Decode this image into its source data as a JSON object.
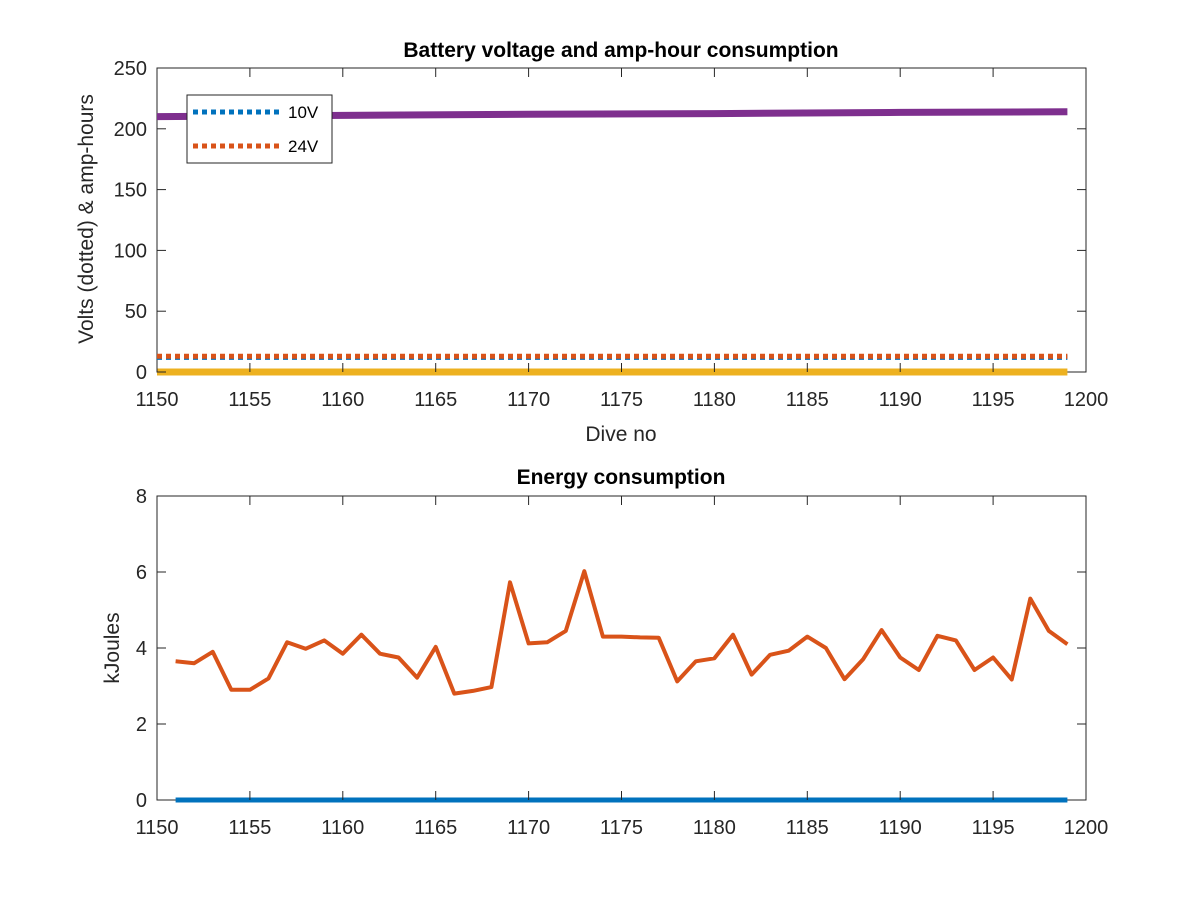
{
  "chart_data": [
    {
      "type": "line",
      "title": "Battery voltage and amp-hour consumption",
      "xlabel": "Dive no",
      "ylabel": "Volts (dotted) & amp-hours",
      "xlim": [
        1150,
        1200
      ],
      "ylim": [
        0,
        250
      ],
      "xticks": [
        1150,
        1155,
        1160,
        1165,
        1170,
        1175,
        1180,
        1185,
        1190,
        1195,
        1200
      ],
      "yticks": [
        0,
        50,
        100,
        150,
        200,
        250
      ],
      "legend": {
        "placement": "top-left",
        "entries": [
          "10V",
          "24V"
        ]
      },
      "series": [
        {
          "name": "10V",
          "style": "dotted",
          "color": "#0072BD",
          "x": [
            1150,
            1199
          ],
          "y": [
            12,
            12
          ]
        },
        {
          "name": "24V",
          "style": "dotted",
          "color": "#D95319",
          "x": [
            1150,
            1199
          ],
          "y": [
            13,
            13
          ]
        },
        {
          "style": "solid",
          "color": "#7E2F8E",
          "x": [
            1150,
            1160,
            1170,
            1180,
            1190,
            1199
          ],
          "y": [
            210,
            211,
            212,
            212.5,
            213.5,
            214
          ]
        },
        {
          "style": "solid",
          "color": "#EDB120",
          "x": [
            1150,
            1199
          ],
          "y": [
            0,
            0
          ]
        }
      ]
    },
    {
      "type": "line",
      "title": "Energy consumption",
      "xlabel": "",
      "ylabel": "kJoules",
      "xlim": [
        1150,
        1200
      ],
      "ylim": [
        0,
        8
      ],
      "xticks": [
        1150,
        1155,
        1160,
        1165,
        1170,
        1175,
        1180,
        1185,
        1190,
        1195,
        1200
      ],
      "yticks": [
        0,
        2,
        4,
        6,
        8
      ],
      "series": [
        {
          "style": "solid",
          "color": "#0072BD",
          "x": [
            1151,
            1199
          ],
          "y": [
            0,
            0
          ]
        },
        {
          "style": "solid",
          "color": "#D95319",
          "x": [
            1151,
            1152,
            1153,
            1154,
            1155,
            1156,
            1157,
            1158,
            1159,
            1160,
            1161,
            1162,
            1163,
            1164,
            1165,
            1166,
            1167,
            1168,
            1169,
            1170,
            1171,
            1172,
            1173,
            1174,
            1175,
            1176,
            1177,
            1178,
            1179,
            1180,
            1181,
            1182,
            1183,
            1184,
            1185,
            1186,
            1187,
            1188,
            1189,
            1190,
            1191,
            1192,
            1193,
            1194,
            1195,
            1196,
            1197,
            1198,
            1199
          ],
          "y": [
            3.65,
            3.6,
            3.9,
            2.9,
            2.9,
            3.2,
            4.15,
            3.98,
            4.2,
            3.85,
            4.35,
            3.85,
            3.75,
            3.22,
            4.03,
            2.8,
            2.87,
            2.97,
            5.73,
            4.12,
            4.15,
            4.45,
            6.02,
            4.3,
            4.3,
            4.28,
            4.27,
            3.12,
            3.65,
            3.73,
            4.35,
            3.3,
            3.82,
            3.93,
            4.3,
            4.0,
            3.18,
            3.7,
            4.47,
            3.75,
            3.42,
            4.32,
            4.2,
            3.42,
            3.75,
            3.17,
            5.3,
            4.45,
            4.1
          ]
        }
      ]
    }
  ]
}
